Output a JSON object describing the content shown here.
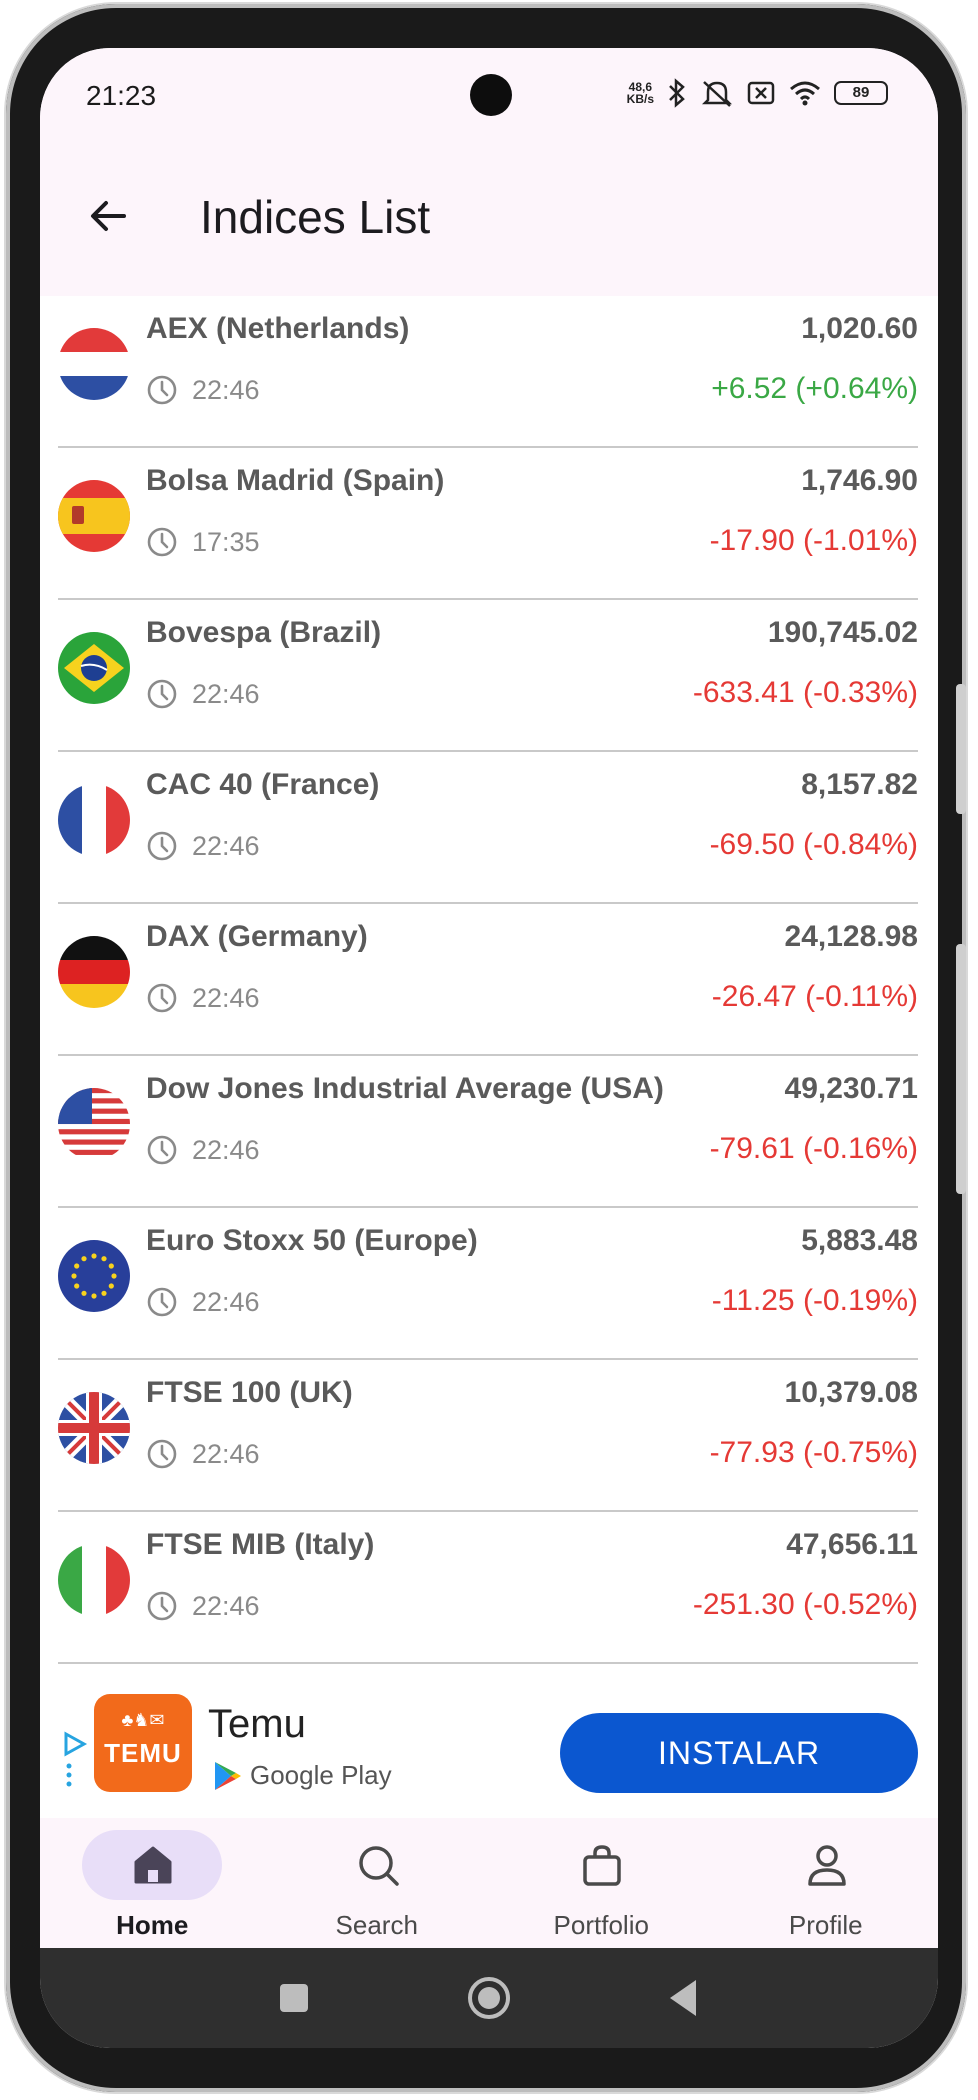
{
  "status_bar": {
    "time": "21:23",
    "net_speed_value": "48,6",
    "net_speed_unit": "KB/s",
    "battery": "89"
  },
  "app_bar": {
    "title": "Indices List",
    "back_icon": "arrow-left-icon"
  },
  "indices": [
    {
      "name": "AEX (Netherlands)",
      "time": "22:46",
      "price": "1,020.60",
      "change": "+6.52 (+0.64%)",
      "direction": "up",
      "flag": "netherlands"
    },
    {
      "name": "Bolsa Madrid (Spain)",
      "time": "17:35",
      "price": "1,746.90",
      "change": "-17.90 (-1.01%)",
      "direction": "down",
      "flag": "spain"
    },
    {
      "name": "Bovespa (Brazil)",
      "time": "22:46",
      "price": "190,745.02",
      "change": "-633.41 (-0.33%)",
      "direction": "down",
      "flag": "brazil"
    },
    {
      "name": "CAC 40 (France)",
      "time": "22:46",
      "price": "8,157.82",
      "change": "-69.50 (-0.84%)",
      "direction": "down",
      "flag": "france"
    },
    {
      "name": "DAX (Germany)",
      "time": "22:46",
      "price": "24,128.98",
      "change": "-26.47 (-0.11%)",
      "direction": "down",
      "flag": "germany"
    },
    {
      "name": "Dow Jones Industrial Average (USA)",
      "time": "22:46",
      "price": "49,230.71",
      "change": "-79.61 (-0.16%)",
      "direction": "down",
      "flag": "usa"
    },
    {
      "name": "Euro Stoxx 50 (Europe)",
      "time": "22:46",
      "price": "5,883.48",
      "change": "-11.25 (-0.19%)",
      "direction": "down",
      "flag": "europe"
    },
    {
      "name": "FTSE 100 (UK)",
      "time": "22:46",
      "price": "10,379.08",
      "change": "-77.93 (-0.75%)",
      "direction": "down",
      "flag": "uk"
    },
    {
      "name": "FTSE MIB (Italy)",
      "time": "22:46",
      "price": "47,656.11",
      "change": "-251.30 (-0.52%)",
      "direction": "down",
      "flag": "italy"
    }
  ],
  "ad": {
    "app_name": "Temu",
    "logo_text": "TEMU",
    "store": "Google Play",
    "install_label": "INSTALAR",
    "brand_color": "#f26a1b",
    "button_color": "#0b57d0"
  },
  "bottom_nav": [
    {
      "label": "Home",
      "icon": "home-icon",
      "active": true
    },
    {
      "label": "Search",
      "icon": "search-icon",
      "active": false
    },
    {
      "label": "Portfolio",
      "icon": "bag-icon",
      "active": false
    },
    {
      "label": "Profile",
      "icon": "profile-icon",
      "active": false
    }
  ],
  "colors": {
    "up": "#3aa845",
    "down": "#e53935",
    "active_nav": "#e8def8"
  }
}
